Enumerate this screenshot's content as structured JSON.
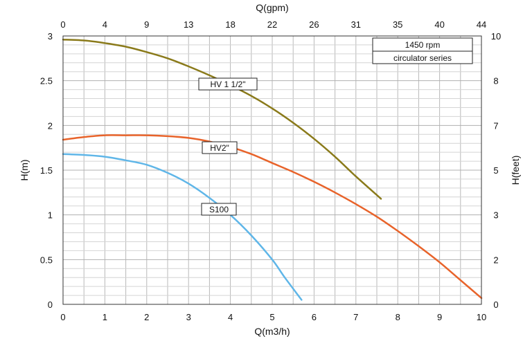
{
  "chart_data": {
    "type": "line",
    "title": "",
    "grid": true,
    "xlabel": "Q(m3/h)",
    "ylabel": "H(m)",
    "x2label": "Q(gpm)",
    "y2label": "H(feet)",
    "xlim": [
      0,
      10
    ],
    "ylim": [
      0,
      3
    ],
    "x_ticks": [
      "0",
      "1",
      "2",
      "3",
      "4",
      "5",
      "6",
      "7",
      "8",
      "9",
      "10"
    ],
    "y_ticks": [
      "0",
      "0.5",
      "1",
      "1.5",
      "2",
      "2.5",
      "3"
    ],
    "x2_ticks": [
      "0",
      "4",
      "9",
      "13",
      "18",
      "22",
      "26",
      "31",
      "35",
      "40",
      "44"
    ],
    "y2_ticks": [
      "0",
      "2",
      "3",
      "5",
      "7",
      "8",
      "10"
    ],
    "legend_box": [
      "1450 rpm",
      "circulator series"
    ],
    "series": [
      {
        "name": "HV 1 1/2\"",
        "color": "#8a7a1a",
        "x": [
          0,
          0.5,
          1,
          1.5,
          2,
          2.5,
          3,
          3.5,
          4,
          4.5,
          5,
          5.5,
          6,
          6.5,
          7,
          7.6
        ],
        "y": [
          2.96,
          2.95,
          2.92,
          2.88,
          2.82,
          2.75,
          2.66,
          2.56,
          2.45,
          2.33,
          2.19,
          2.03,
          1.85,
          1.65,
          1.43,
          1.18
        ]
      },
      {
        "name": "HV2\"",
        "color": "#e8632a",
        "x": [
          0,
          0.5,
          1,
          1.5,
          2,
          2.5,
          3,
          3.5,
          4,
          4.5,
          5,
          5.5,
          6,
          6.5,
          7,
          7.5,
          8,
          8.5,
          9,
          9.5,
          10
        ],
        "y": [
          1.84,
          1.87,
          1.89,
          1.89,
          1.89,
          1.88,
          1.86,
          1.82,
          1.76,
          1.68,
          1.58,
          1.48,
          1.37,
          1.25,
          1.12,
          0.98,
          0.82,
          0.65,
          0.47,
          0.27,
          0.07
        ]
      },
      {
        "name": "S100",
        "color": "#5fb6e8",
        "x": [
          0,
          0.5,
          1,
          1.5,
          2,
          2.5,
          3,
          3.5,
          4,
          4.5,
          5,
          5.3,
          5.7
        ],
        "y": [
          1.68,
          1.67,
          1.65,
          1.61,
          1.56,
          1.47,
          1.35,
          1.19,
          1.0,
          0.77,
          0.5,
          0.3,
          0.05
        ]
      }
    ]
  }
}
